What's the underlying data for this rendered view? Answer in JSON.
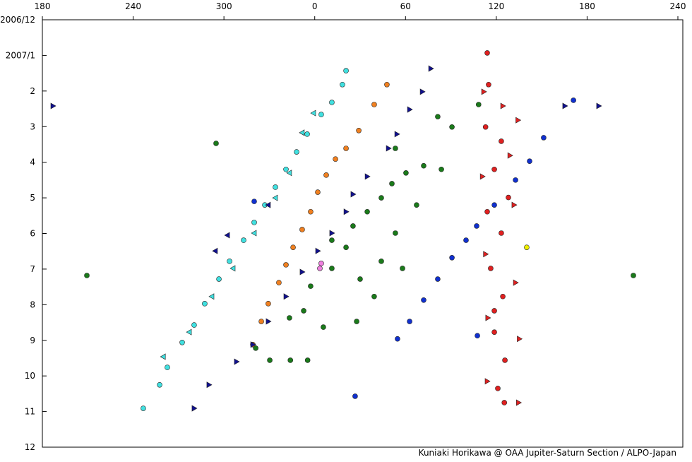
{
  "chart_data": {
    "type": "scatter",
    "xlim": [
      180,
      600
    ],
    "xticks": [
      180,
      240,
      300,
      {
        "value": 360,
        "label": "0"
      },
      {
        "value": 420,
        "label": "60"
      },
      {
        "value": 480,
        "label": "120"
      },
      {
        "value": 540,
        "label": "180"
      },
      {
        "value": 600,
        "label": "240"
      }
    ],
    "ylim": [
      0,
      12
    ],
    "yticks": [
      {
        "value": 0,
        "label": "2006/12"
      },
      {
        "value": 1,
        "label": "2007/1"
      },
      2,
      3,
      4,
      5,
      6,
      7,
      8,
      9,
      10,
      11,
      12
    ],
    "y_inverted": true,
    "credit": "Kuniaki Horikawa @ OAA Jupiter-Saturn Section / ALPO-Japan",
    "series": [
      {
        "color": "#40e0e0",
        "marker": "circle",
        "x": [
          246.7,
          257.5,
          262.6,
          272.4,
          280.3,
          287.3,
          296.7,
          303.7,
          313.0,
          320.0,
          327.0,
          334.0,
          341.0,
          348.0,
          355.0,
          364.3,
          371.3,
          378.3,
          380.7
        ],
        "y": [
          10.91,
          10.25,
          9.76,
          9.06,
          8.57,
          7.97,
          7.28,
          6.78,
          6.19,
          5.69,
          5.2,
          4.7,
          4.2,
          3.71,
          3.21,
          2.66,
          2.32,
          1.82,
          1.43
        ]
      },
      {
        "color": "#40e0e0",
        "marker": "triangle-left",
        "x": [
          259.9,
          277.1,
          292.0,
          306.0,
          320.0,
          334.0,
          343.3,
          351.7,
          359.2
        ],
        "y": [
          9.46,
          8.77,
          7.77,
          6.98,
          5.99,
          5.0,
          4.3,
          3.17,
          2.62
        ]
      },
      {
        "color": "#f08020",
        "marker": "circle",
        "x": [
          319.1,
          324.7,
          329.3,
          336.3,
          341.0,
          345.7,
          351.7,
          357.3,
          362.0,
          367.6,
          373.7,
          380.7,
          389.1,
          399.3,
          407.7
        ],
        "y": [
          9.12,
          8.47,
          7.97,
          7.38,
          6.88,
          6.39,
          5.89,
          5.39,
          4.84,
          4.36,
          3.91,
          3.61,
          3.11,
          2.38,
          1.82
        ]
      },
      {
        "color": "#101090",
        "marker": "triangle-right",
        "x": [
          280.3,
          290.1,
          308.3,
          319.1,
          329.3,
          341.0,
          351.7,
          362.0,
          371.3,
          380.7,
          385.3,
          394.7,
          408.7,
          414.3,
          422.7,
          431.1,
          436.7,
          187.0,
          547.7,
          525.3
        ],
        "y": [
          10.91,
          10.25,
          9.6,
          9.12,
          8.47,
          7.77,
          7.08,
          6.49,
          5.99,
          5.39,
          4.9,
          4.4,
          3.61,
          3.21,
          2.52,
          2.02,
          1.37,
          2.42,
          2.42,
          2.42
        ]
      },
      {
        "color": "#101090",
        "marker": "triangle-left",
        "x": [
          302.3,
          294.3,
          329.3
        ],
        "y": [
          6.05,
          6.49,
          5.2
        ]
      },
      {
        "color": "#1a7a1a",
        "marker": "circle",
        "x": [
          209.4,
          294.8,
          343.3,
          352.7,
          365.7,
          357.3,
          371.3,
          380.7,
          385.3,
          394.7,
          404.0,
          411.0,
          420.3,
          432.0,
          443.7,
          450.7,
          441.3,
          413.3,
          399.3,
          390.0,
          404.0,
          418.0,
          413.3,
          427.3,
          371.3,
          387.7,
          321.0,
          330.3,
          343.9,
          355.3,
          570.6,
          468.3
        ],
        "y": [
          7.18,
          3.47,
          8.37,
          8.17,
          8.63,
          7.48,
          6.98,
          6.39,
          5.79,
          5.39,
          5.0,
          4.6,
          4.3,
          4.1,
          4.2,
          3.01,
          2.72,
          3.61,
          7.77,
          7.28,
          6.78,
          6.98,
          5.99,
          5.2,
          6.19,
          8.47,
          9.22,
          9.56,
          9.56,
          9.56,
          7.18,
          2.38
        ]
      },
      {
        "color": "#1030d0",
        "marker": "circle",
        "x": [
          386.7,
          414.7,
          422.7,
          432.0,
          441.3,
          450.7,
          460.0,
          467.0,
          478.7,
          492.7,
          502.0,
          511.3,
          531.0,
          320.0,
          467.5
        ],
        "y": [
          10.57,
          8.96,
          8.47,
          7.87,
          7.28,
          6.68,
          6.19,
          5.79,
          5.2,
          4.5,
          3.97,
          3.31,
          2.26,
          5.1,
          8.87
        ]
      },
      {
        "color": "#e02020",
        "marker": "circle",
        "x": [
          474.0,
          474.9,
          472.9,
          478.7,
          474.0,
          483.3,
          476.3,
          484.3,
          478.7,
          485.7,
          481.0,
          485.3,
          488.0,
          483.3,
          478.7
        ],
        "y": [
          0.93,
          1.82,
          3.01,
          4.2,
          5.39,
          5.99,
          6.98,
          7.77,
          8.77,
          9.56,
          10.35,
          10.75,
          4.99,
          3.41,
          8.17
        ]
      },
      {
        "color": "#e02020",
        "marker": "triangle-right",
        "x": [
          471.7,
          494.3,
          470.8,
          491.7,
          472.9,
          492.7,
          474.4,
          495.2,
          474.0,
          494.7,
          484.3,
          489.0
        ],
        "y": [
          2.02,
          2.82,
          4.4,
          5.2,
          6.58,
          7.38,
          8.37,
          8.96,
          10.15,
          10.75,
          2.42,
          3.81
        ]
      },
      {
        "color": "#f080e0",
        "marker": "circle",
        "x": [
          364.3,
          363.4
        ],
        "y": [
          6.84,
          6.98
        ]
      },
      {
        "color": "#f0f000",
        "marker": "circle",
        "x": [
          500.1
        ],
        "y": [
          6.39
        ]
      }
    ]
  }
}
